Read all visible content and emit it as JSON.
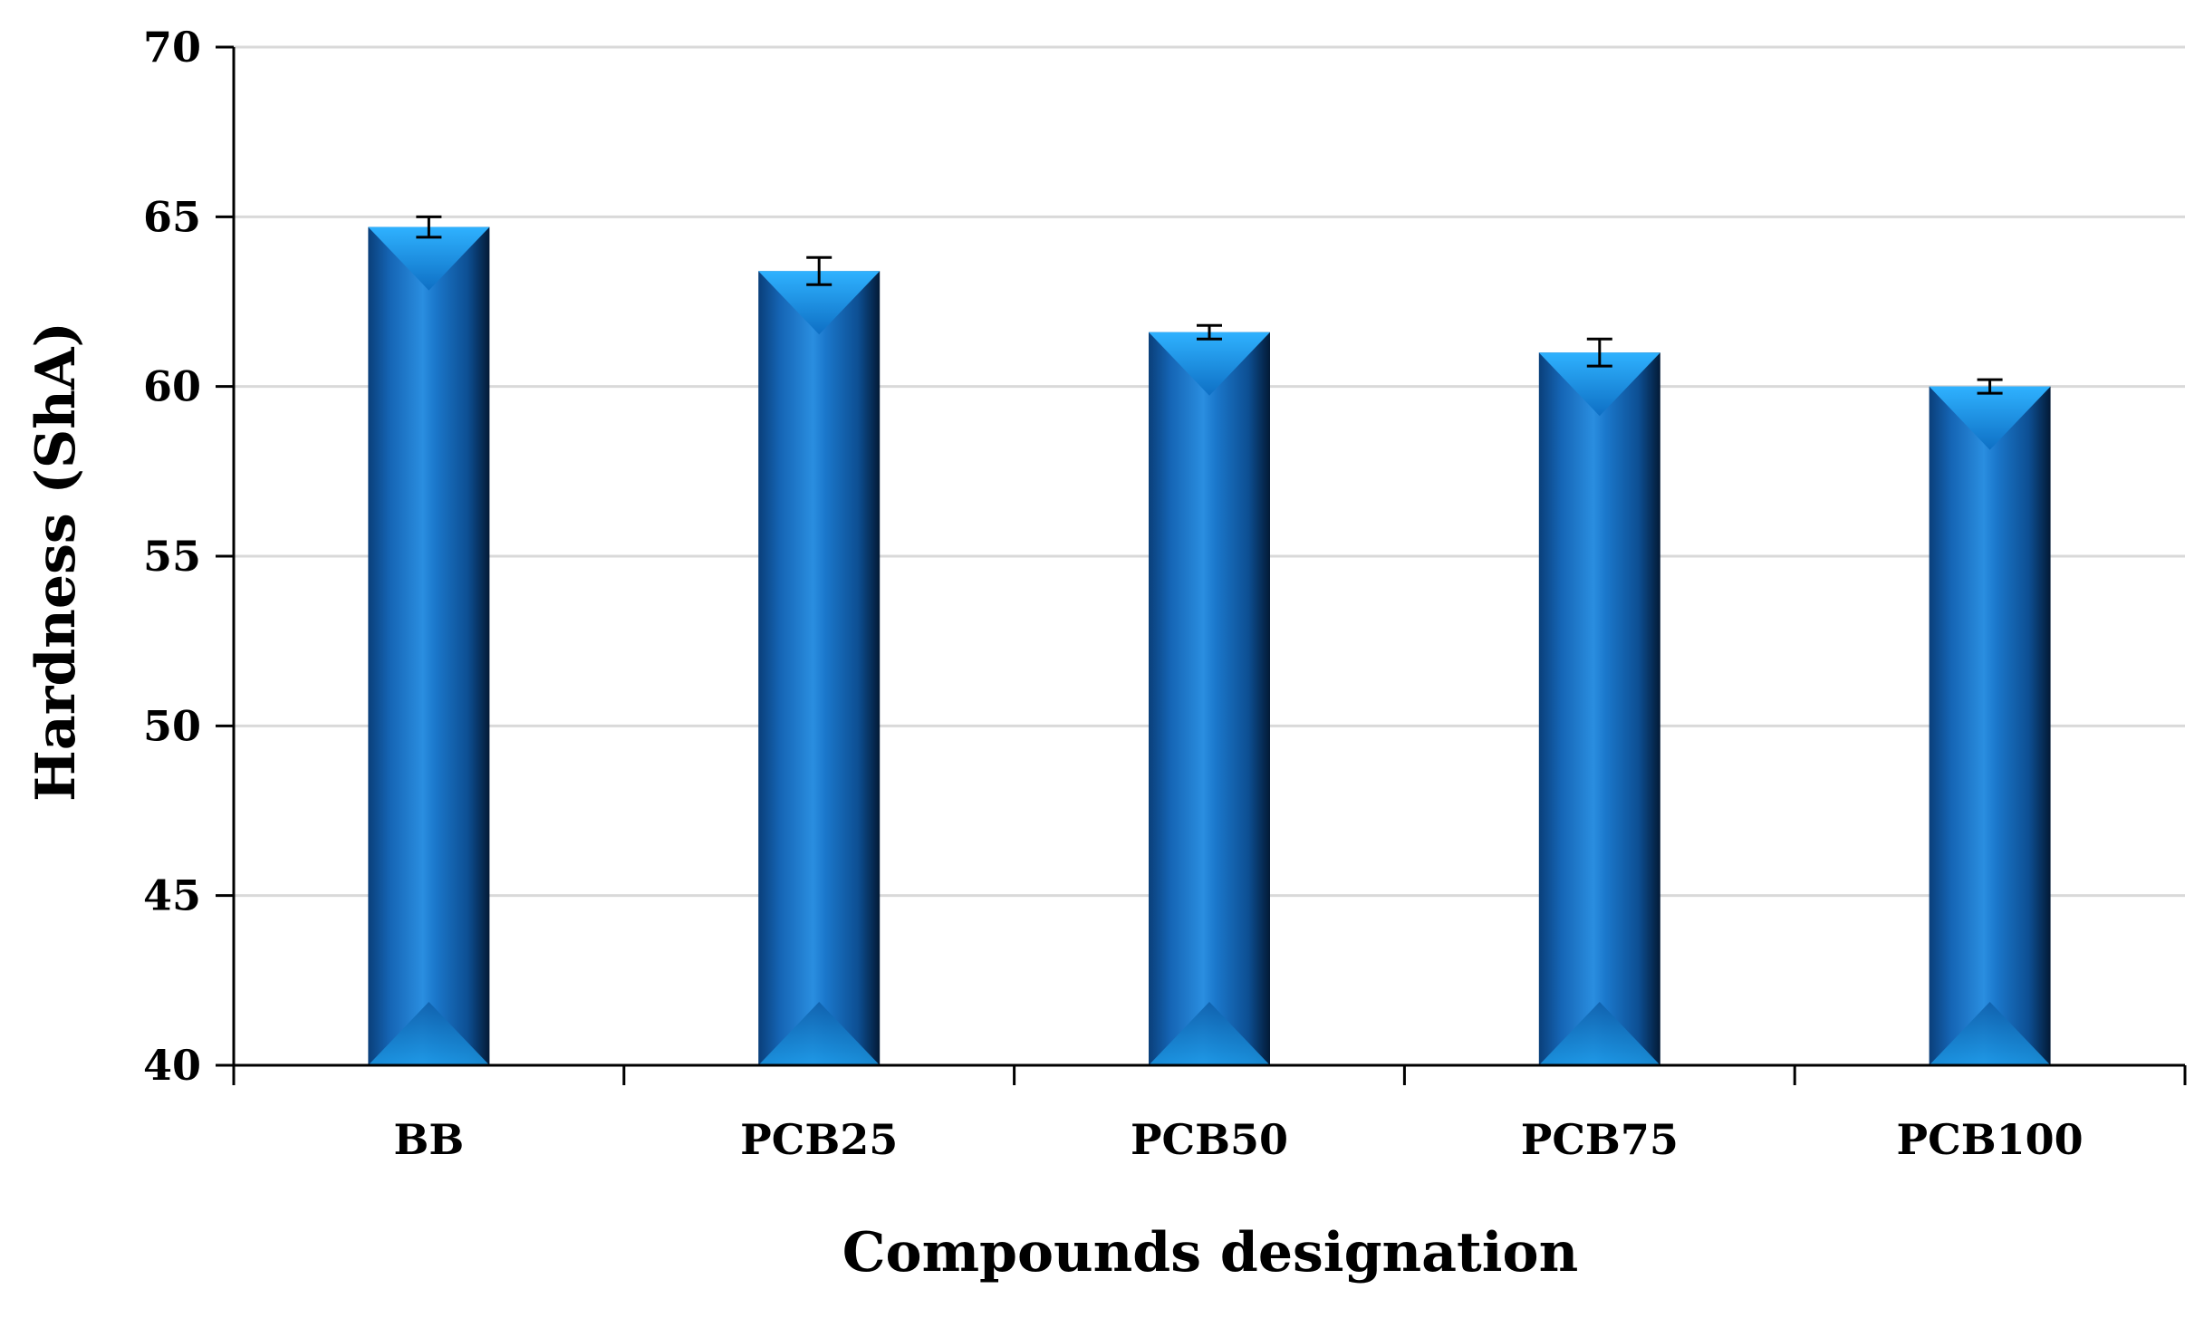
{
  "chart_data": {
    "type": "bar",
    "title": "",
    "xlabel": "Compounds designation",
    "ylabel": "Hardness (ShA)",
    "categories": [
      "BB",
      "PCB25",
      "PCB50",
      "PCB75",
      "PCB100"
    ],
    "values": [
      64.7,
      63.4,
      61.6,
      61.0,
      60.0
    ],
    "errors": [
      0.3,
      0.4,
      0.2,
      0.4,
      0.2
    ],
    "ylim": [
      40,
      70
    ],
    "yticks": [
      40,
      45,
      50,
      55,
      60,
      65,
      70
    ],
    "grid": true,
    "legend": "none",
    "bar_color": "#1a6fc0"
  }
}
